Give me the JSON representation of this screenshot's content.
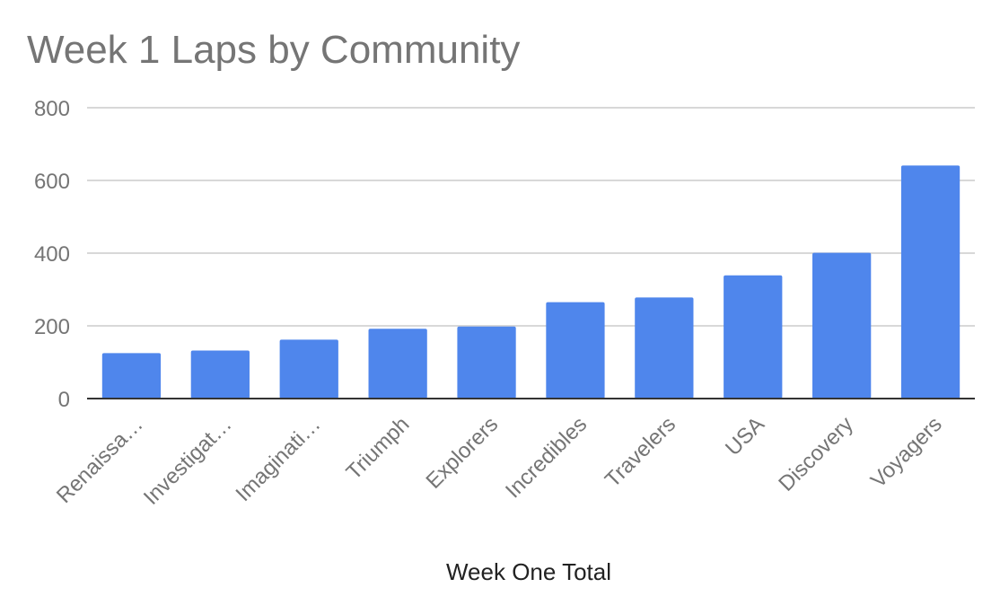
{
  "chart_data": {
    "type": "bar",
    "title": "Week 1  Laps by Community",
    "xlabel": "Week One Total",
    "ylabel": "",
    "categories": [
      "Renaissa…",
      "Investigat…",
      "Imaginati…",
      "Triumph",
      "Explorers",
      "Incredibles",
      "Travelers",
      "USA",
      "Discovery",
      "Voyagers"
    ],
    "values": [
      125,
      132,
      162,
      192,
      198,
      265,
      278,
      339,
      401,
      641
    ],
    "ylim": [
      0,
      800
    ],
    "yticks": [
      "0",
      "200",
      "400",
      "600",
      "800"
    ],
    "bar_color": "#4f86ec",
    "grid": true,
    "legend": "none"
  }
}
